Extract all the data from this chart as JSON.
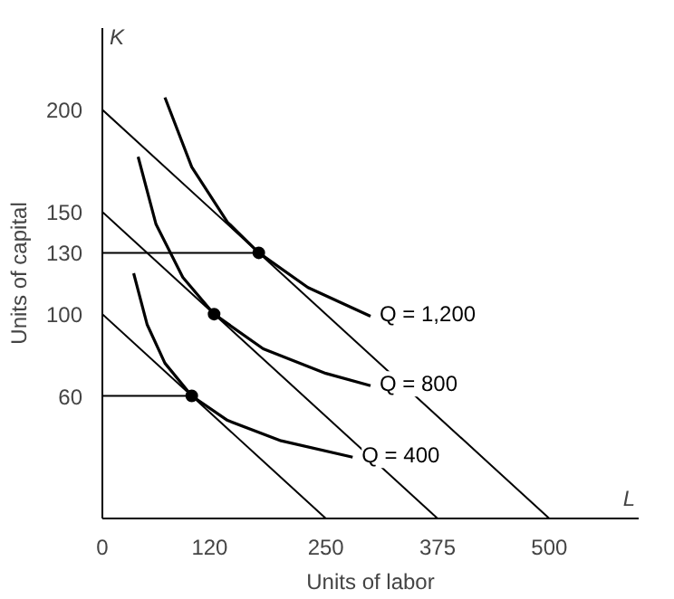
{
  "chart_data": {
    "type": "line",
    "xlabel": "Units of labor",
    "ylabel": "Units of capital",
    "xlim": [
      0,
      600
    ],
    "ylim": [
      0,
      240
    ],
    "xticks": [
      0,
      120,
      250,
      375,
      500
    ],
    "yticks": [
      60,
      100,
      130,
      150,
      200
    ],
    "grid": false,
    "marker": "none",
    "line_style": "solid",
    "annotations": [
      "K",
      "L"
    ],
    "series": [
      {
        "name": "Q = 1,200",
        "color": "#000000",
        "x": [
          70,
          100,
          140,
          175,
          230,
          300
        ],
        "values": [
          206,
          172,
          145,
          130,
          113,
          99
        ]
      },
      {
        "name": "Q = 800",
        "color": "#000000",
        "x": [
          40,
          60,
          90,
          125,
          180,
          250,
          300
        ],
        "values": [
          177,
          144,
          118,
          100,
          83,
          71,
          65
        ]
      },
      {
        "name": "Q = 400",
        "color": "#000000",
        "x": [
          35,
          50,
          70,
          100,
          140,
          200,
          280
        ],
        "values": [
          120,
          95,
          76,
          60,
          48,
          38,
          30
        ]
      },
      {
        "color": "#000000",
        "x": [
          0,
          500
        ],
        "values": [
          200,
          0
        ]
      },
      {
        "color": "#000000",
        "x": [
          0,
          375
        ],
        "values": [
          150,
          0
        ]
      },
      {
        "color": "#000000",
        "x": [
          0,
          250
        ],
        "values": [
          100,
          0
        ]
      },
      {
        "color": "#000000",
        "x": [
          0,
          175
        ],
        "values": [
          130,
          130
        ]
      },
      {
        "color": "#000000",
        "x": [
          0,
          100
        ],
        "values": [
          60,
          60
        ]
      },
      {
        "type": "scatter",
        "marker": "circle",
        "color": "#000000",
        "x": [
          175,
          125,
          100
        ],
        "values": [
          130,
          100,
          60
        ]
      }
    ]
  }
}
